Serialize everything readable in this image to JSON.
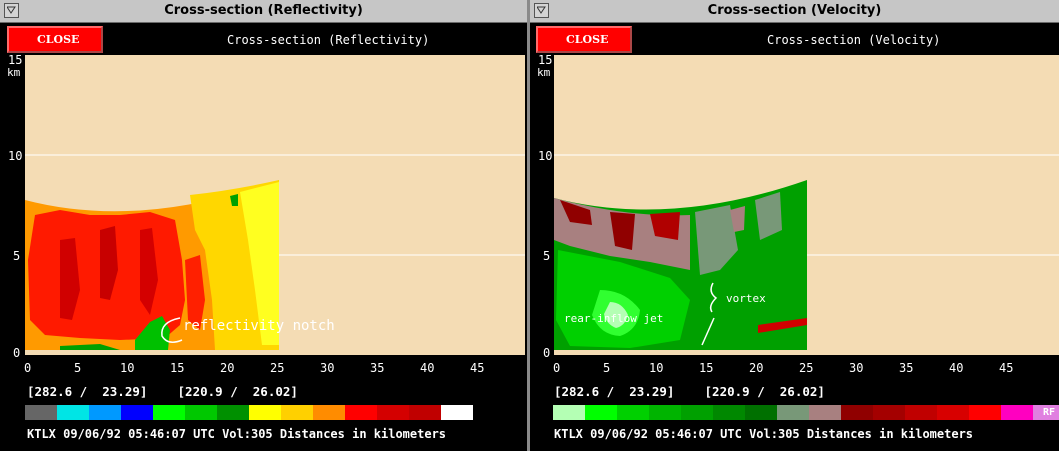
{
  "windows": [
    {
      "title": "Cross-section (Reflectivity)",
      "close_label": "CLOSE",
      "subtitle": "Cross-section (Reflectivity)",
      "y_unit": "km",
      "y_ticks": [
        "15",
        "10",
        "5",
        "0"
      ],
      "x_ticks": [
        "0",
        "5",
        "10",
        "15",
        "20",
        "25",
        "30",
        "35",
        "40",
        "45"
      ],
      "coords": "[282.6 /  23.29]    [220.9 /  26.02]",
      "footer": "KTLX 09/06/92 05:46:07 UTC Vol:305 Distances in kilometers",
      "annotation": "reflectivity notch",
      "scale": [
        "#666666",
        "#00e5e5",
        "#0099ff",
        "#0000ff",
        "#00ff00",
        "#00c800",
        "#009000",
        "#ffff00",
        "#ffd000",
        "#ff8c00",
        "#ff0000",
        "#d40000",
        "#c00000",
        "#ffffff"
      ],
      "scale_label": ""
    },
    {
      "title": "Cross-section (Velocity)",
      "close_label": "CLOSE",
      "subtitle": "Cross-section (Velocity)",
      "y_unit": "km",
      "y_ticks": [
        "15",
        "10",
        "5",
        "0"
      ],
      "x_ticks": [
        "0",
        "5",
        "10",
        "15",
        "20",
        "25",
        "30",
        "35",
        "40",
        "45"
      ],
      "coords": "[282.6 /  23.29]    [220.9 /  26.02]",
      "footer": "KTLX 09/06/92 05:46:07 UTC Vol:305 Distances in kilometers",
      "annotation_a": "vortex",
      "annotation_b": "rear-inflow jet",
      "scale": [
        "#b4ffb4",
        "#00ff00",
        "#00d000",
        "#00b400",
        "#00a000",
        "#008800",
        "#007000",
        "#789878",
        "#a88080",
        "#900000",
        "#a40000",
        "#c00000",
        "#d80000",
        "#ff0000",
        "#ff00c0",
        "#e080e0"
      ],
      "scale_label": "RF"
    }
  ]
}
